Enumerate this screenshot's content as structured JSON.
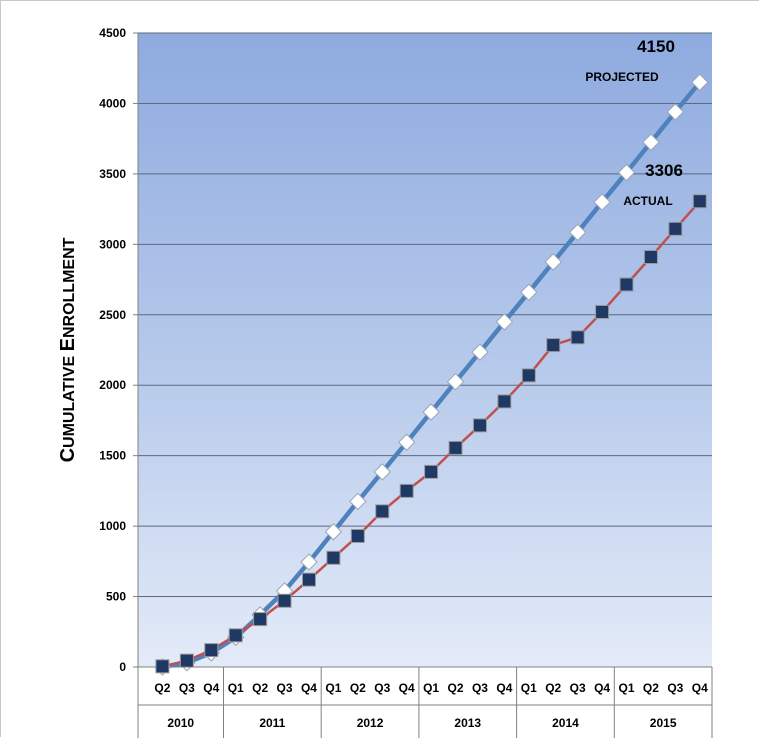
{
  "chart_data": {
    "type": "line",
    "ylabel": {
      "first": "C",
      "rest": "UMULATIVE",
      "first2": "E",
      "rest2": "NROLLMENT"
    },
    "ylim": [
      0,
      4500
    ],
    "yticks": [
      0,
      500,
      1000,
      1500,
      2000,
      2500,
      3000,
      3500,
      4000,
      4500
    ],
    "grid": true,
    "quarters": [
      "Q2",
      "Q3",
      "Q4",
      "Q1",
      "Q2",
      "Q3",
      "Q4",
      "Q1",
      "Q2",
      "Q3",
      "Q4",
      "Q1",
      "Q2",
      "Q3",
      "Q4",
      "Q1",
      "Q2",
      "Q3",
      "Q4",
      "Q1",
      "Q2",
      "Q3",
      "Q4"
    ],
    "years": [
      {
        "label": "2010",
        "count": 3
      },
      {
        "label": "2011",
        "count": 4
      },
      {
        "label": "2012",
        "count": 4
      },
      {
        "label": "2013",
        "count": 4
      },
      {
        "label": "2014",
        "count": 4
      },
      {
        "label": "2015",
        "count": 4
      }
    ],
    "series": [
      {
        "name": "PROJECTED",
        "color": "#4f81bd",
        "marker": "diamond",
        "values": [
          0,
          30,
          100,
          210,
          370,
          540,
          745,
          960,
          1175,
          1385,
          1595,
          1810,
          2025,
          2235,
          2450,
          2660,
          2875,
          3085,
          3300,
          3510,
          3725,
          3940,
          4150
        ]
      },
      {
        "name": "ACTUAL",
        "color": "#c0504d",
        "marker": "square",
        "values": [
          5,
          45,
          120,
          225,
          340,
          470,
          620,
          775,
          930,
          1105,
          1250,
          1385,
          1555,
          1715,
          1885,
          2070,
          2285,
          2340,
          2520,
          2715,
          2910,
          3110,
          3306
        ]
      }
    ],
    "annotations": [
      {
        "id": "projected-value",
        "text": "4150"
      },
      {
        "id": "projected-label",
        "text": "PROJECTED"
      },
      {
        "id": "actual-value",
        "text": "3306"
      },
      {
        "id": "actual-label",
        "text": "ACTUAL"
      }
    ]
  }
}
